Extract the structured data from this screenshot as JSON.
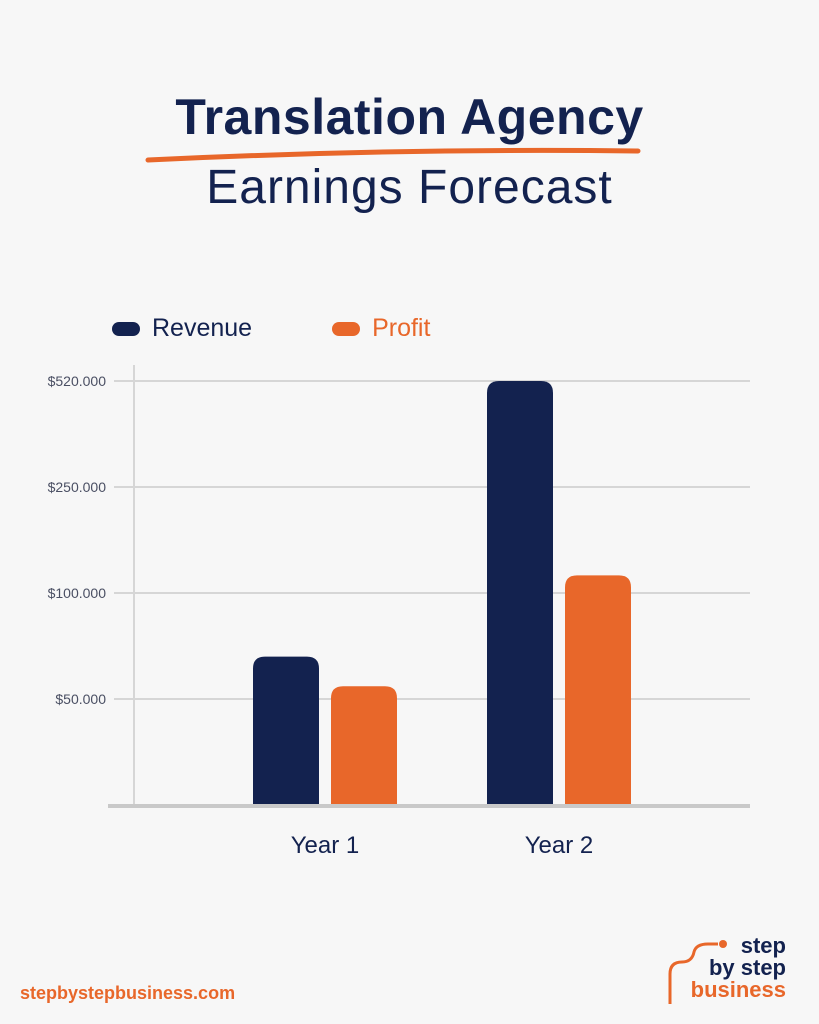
{
  "title": {
    "line1": "Translation Agency",
    "line2": "Earnings Forecast"
  },
  "colors": {
    "revenue": "#13224f",
    "profit": "#e8672a",
    "grid": "#d6d6d6",
    "background": "#f7f7f7"
  },
  "chart_data": {
    "type": "bar",
    "categories": [
      "Year 1",
      "Year 2"
    ],
    "series": [
      {
        "name": "Revenue",
        "values": [
          70000,
          520000
        ]
      },
      {
        "name": "Profit",
        "values": [
          56000,
          125000
        ]
      }
    ],
    "yticks": [
      50000,
      100000,
      250000,
      520000
    ],
    "ytick_labels": [
      "$50.000",
      "$100.000",
      "$250.000",
      "$520.000"
    ],
    "y_scale": "non-linear (equally spaced ticks)",
    "ylim": [
      0,
      520000
    ],
    "grid": true,
    "legend_placement": "top-left",
    "xlabel": "",
    "ylabel": ""
  },
  "footer": {
    "website": "stepbystepbusiness.com",
    "logo": {
      "line1": "step",
      "line2": "by step",
      "line3": "business"
    }
  }
}
